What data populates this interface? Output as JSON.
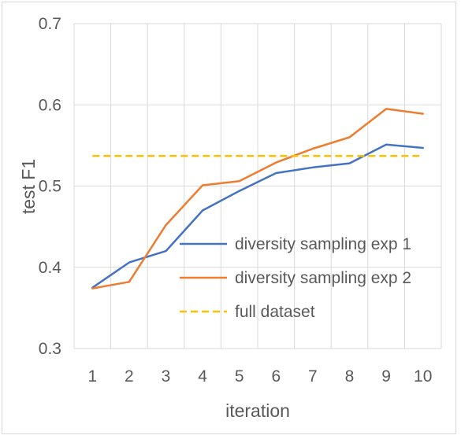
{
  "chart_data": {
    "type": "line",
    "title": "",
    "xlabel": "iteration",
    "ylabel": "test F1",
    "x": [
      1,
      2,
      3,
      4,
      5,
      6,
      7,
      8,
      9,
      10
    ],
    "x_tick_labels": [
      "1",
      "2",
      "3",
      "4",
      "5",
      "6",
      "7",
      "8",
      "9",
      "10"
    ],
    "y_tick_labels": [
      "0.3",
      "0.4",
      "0.5",
      "0.6",
      "0.7"
    ],
    "ylim": [
      0.3,
      0.7
    ],
    "grid": true,
    "legend_position": "center-right",
    "series": [
      {
        "name": "diversity sampling exp 1",
        "color": "#4472c4",
        "style": "solid",
        "values": [
          0.375,
          0.406,
          0.42,
          0.47,
          0.494,
          0.516,
          0.523,
          0.528,
          0.551,
          0.547
        ]
      },
      {
        "name": "diversity sampling exp 2",
        "color": "#ed7d31",
        "style": "solid",
        "values": [
          0.374,
          0.382,
          0.452,
          0.501,
          0.506,
          0.529,
          0.546,
          0.56,
          0.595,
          0.589
        ]
      },
      {
        "name": "full dataset",
        "color": "#ffc000",
        "style": "dashed",
        "values": [
          0.537,
          0.537,
          0.537,
          0.537,
          0.537,
          0.537,
          0.537,
          0.537,
          0.537,
          0.537
        ]
      }
    ]
  }
}
